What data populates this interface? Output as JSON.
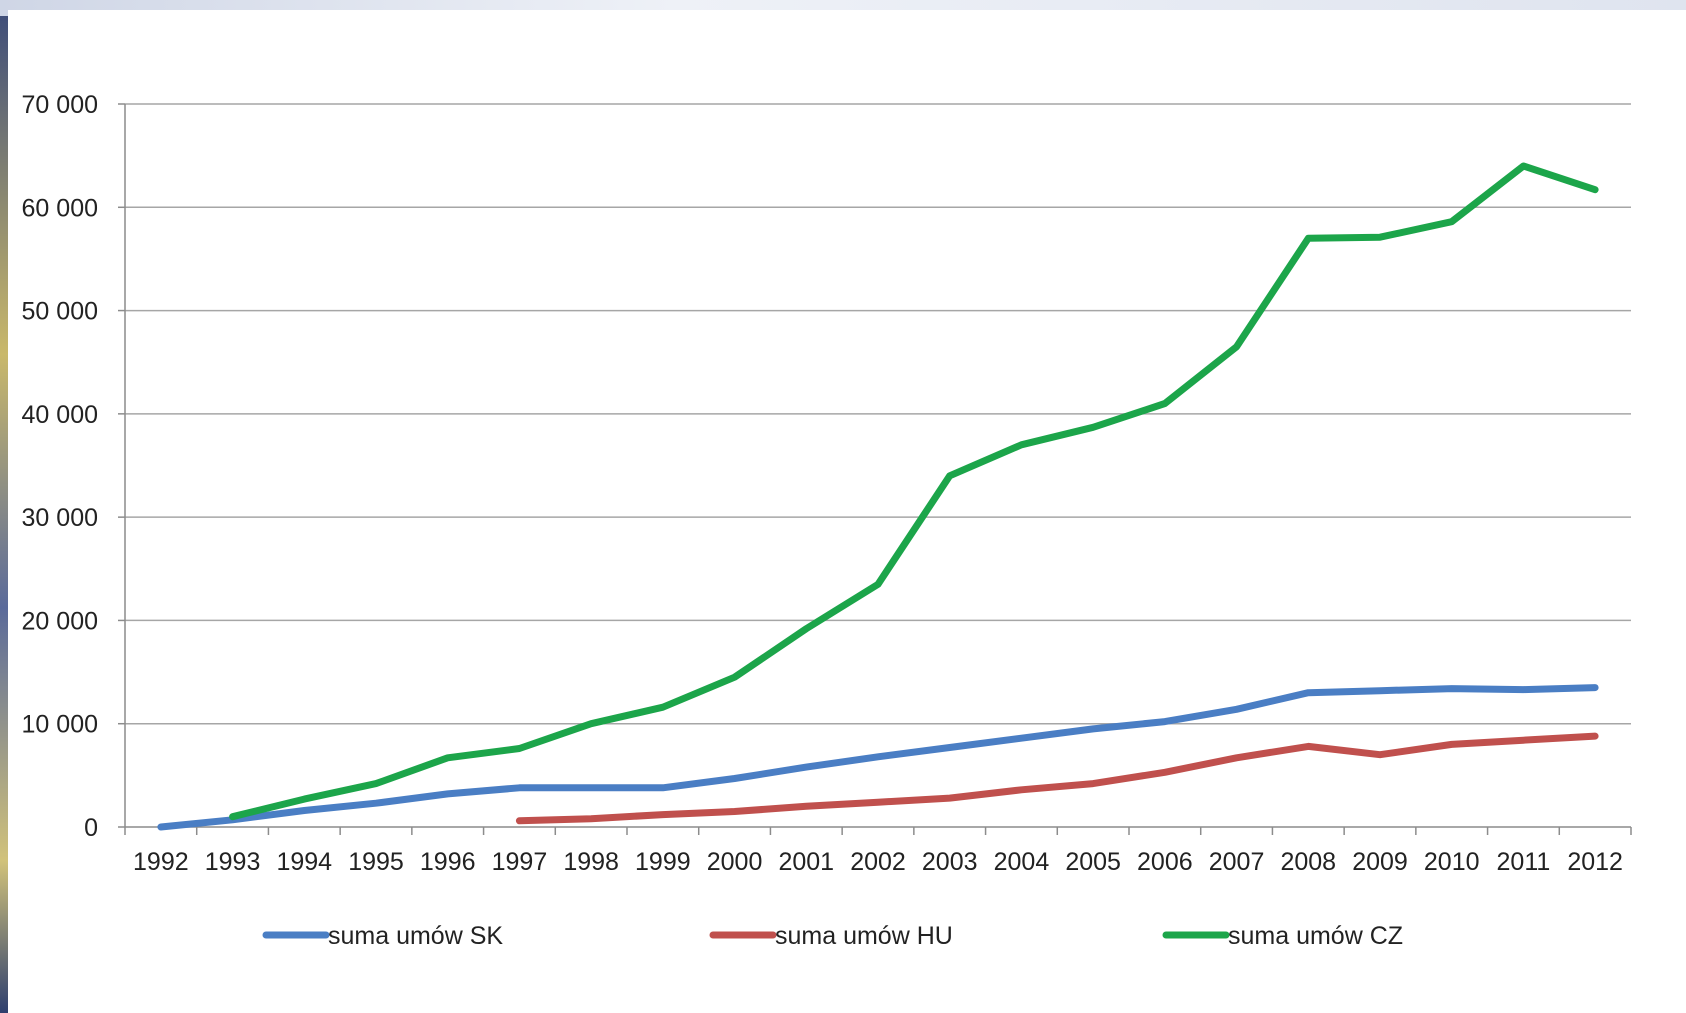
{
  "chart_data": {
    "type": "line",
    "title": "",
    "xlabel": "",
    "ylabel": "",
    "ylim": [
      0,
      70000
    ],
    "yticks": [
      0,
      10000,
      20000,
      30000,
      40000,
      50000,
      60000,
      70000
    ],
    "ytick_labels": [
      "0",
      "10 000",
      "20 000",
      "30 000",
      "40 000",
      "50 000",
      "60 000",
      "70 000"
    ],
    "categories": [
      "1992",
      "1993",
      "1994",
      "1995",
      "1996",
      "1997",
      "1998",
      "1999",
      "2000",
      "2001",
      "2002",
      "2003",
      "2004",
      "2005",
      "2006",
      "2007",
      "2008",
      "2009",
      "2010",
      "2011",
      "2012"
    ],
    "grid": "horizontal",
    "legend_position": "bottom",
    "series": [
      {
        "name": "suma umów SK",
        "color": "#4a7ec4",
        "values": [
          0,
          700,
          1600,
          2300,
          3200,
          3800,
          3800,
          3800,
          4700,
          5800,
          6800,
          7700,
          8600,
          9500,
          10200,
          11400,
          13000,
          13200,
          13400,
          13300,
          13500
        ]
      },
      {
        "name": "suma umów HU",
        "color": "#c0504d",
        "values": [
          null,
          null,
          null,
          null,
          null,
          600,
          800,
          1200,
          1500,
          2000,
          2400,
          2800,
          3600,
          4200,
          5300,
          6700,
          7800,
          7000,
          8000,
          8400,
          8800
        ]
      },
      {
        "name": "suma umów CZ",
        "color": "#1ca54a",
        "values": [
          null,
          1000,
          2700,
          4200,
          6700,
          7600,
          10000,
          11600,
          14500,
          19200,
          23500,
          34000,
          37000,
          38700,
          41000,
          46500,
          57000,
          57100,
          58600,
          64000,
          61700
        ]
      }
    ]
  }
}
